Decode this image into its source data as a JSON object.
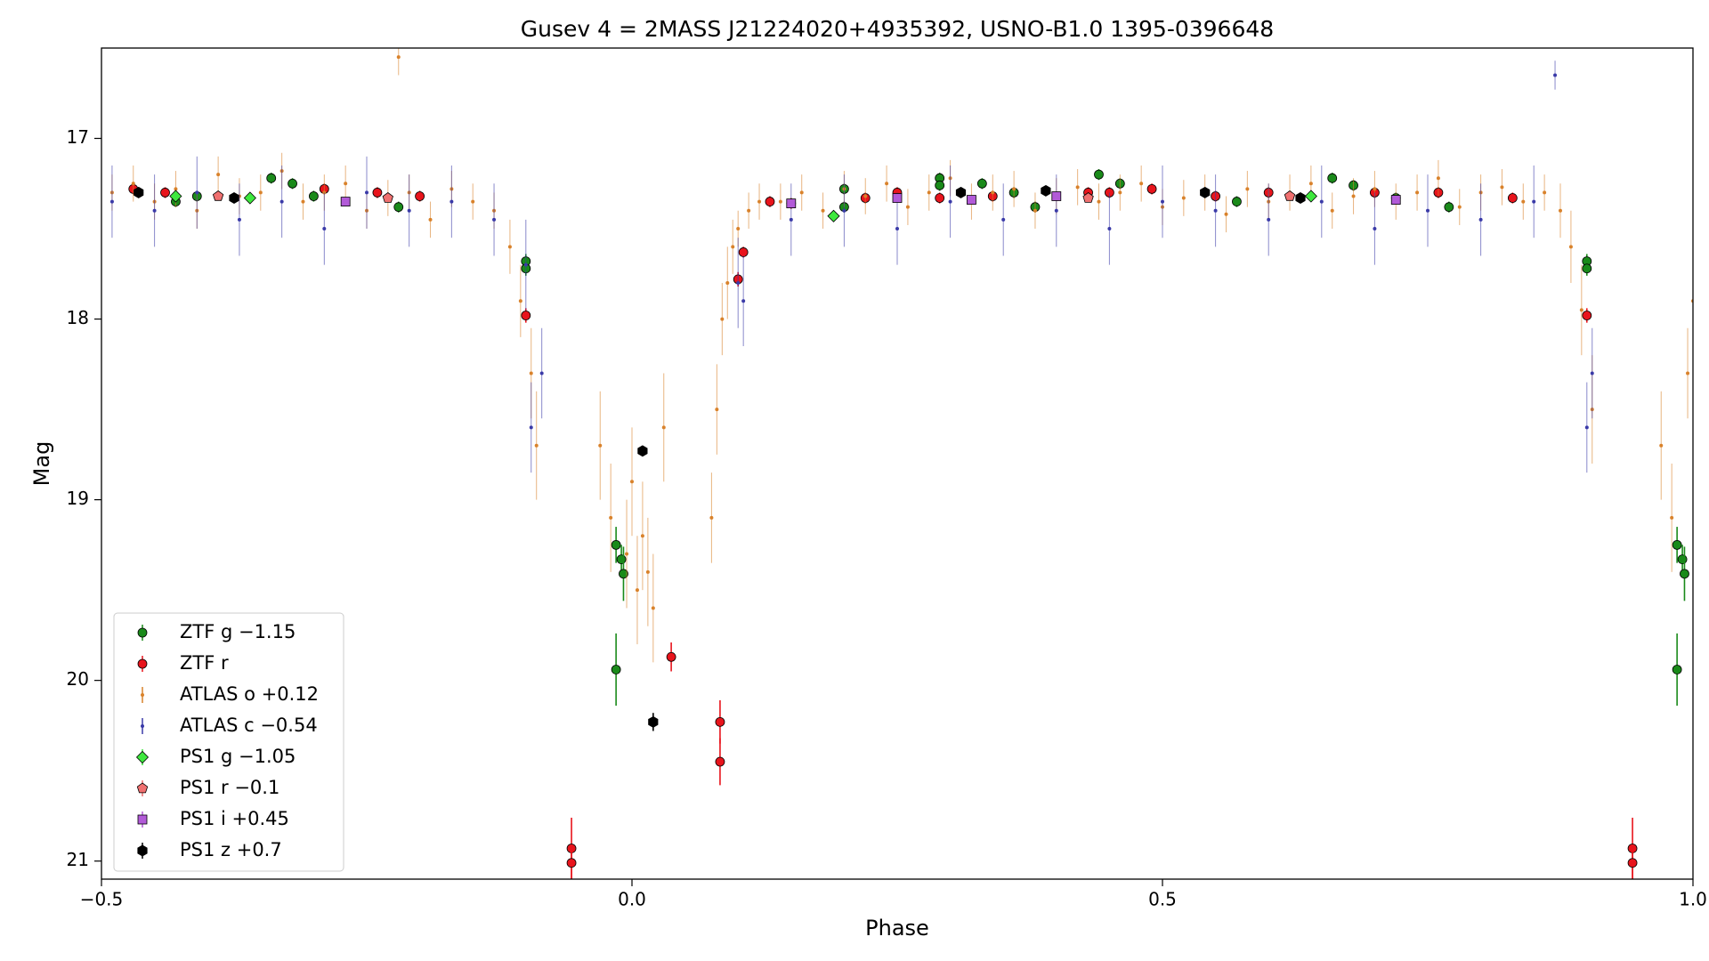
{
  "chart_data": {
    "type": "scatter",
    "title": "Gusev 4 = 2MASS J21224020+4935392, USNO-B1.0 1395-0396648",
    "x_label": "Phase",
    "y_label": "Mag",
    "xlim": [
      -0.5,
      1.0
    ],
    "ylim": [
      21.1,
      16.5
    ],
    "xticks": [
      {
        "value": -0.5,
        "label": "−0.5"
      },
      {
        "value": 0.0,
        "label": "0.0"
      },
      {
        "value": 0.5,
        "label": "0.5"
      },
      {
        "value": 1.0,
        "label": "1.0"
      }
    ],
    "yticks": [
      17,
      18,
      19,
      20,
      21
    ],
    "y_inverted": true,
    "grid": false,
    "legend": "lower left",
    "series": [
      {
        "name": "ZTF g −1.15",
        "color": "#1a8a1a",
        "marker": "circle",
        "x": [
          -0.465,
          -0.43,
          -0.41,
          -0.34,
          -0.32,
          -0.3,
          -0.22,
          -0.1,
          -0.1,
          -0.015,
          -0.01,
          -0.008,
          -0.015,
          0.2,
          0.2,
          0.29,
          0.29,
          0.33,
          0.36,
          0.38,
          0.44,
          0.46,
          0.57,
          0.66,
          0.68,
          0.72,
          0.77,
          0.9,
          0.9,
          0.985,
          0.99,
          0.992,
          0.985
        ],
        "values": [
          17.3,
          17.35,
          17.32,
          17.22,
          17.25,
          17.32,
          17.38,
          17.68,
          17.72,
          19.25,
          19.33,
          19.41,
          19.94,
          17.28,
          17.38,
          17.22,
          17.26,
          17.25,
          17.3,
          17.38,
          17.2,
          17.25,
          17.35,
          17.22,
          17.26,
          17.33,
          17.38,
          17.68,
          17.72,
          19.25,
          19.33,
          19.41,
          19.94
        ],
        "errors": [
          0.03,
          0.03,
          0.03,
          0.03,
          0.03,
          0.03,
          0.03,
          0.04,
          0.04,
          0.1,
          0.08,
          0.15,
          0.2,
          0.03,
          0.03,
          0.03,
          0.03,
          0.03,
          0.03,
          0.03,
          0.03,
          0.03,
          0.03,
          0.03,
          0.03,
          0.03,
          0.03,
          0.04,
          0.04,
          0.1,
          0.08,
          0.15,
          0.2
        ]
      },
      {
        "name": "ZTF r",
        "color": "#e8141c",
        "marker": "circle",
        "x": [
          -0.47,
          -0.44,
          -0.29,
          -0.24,
          -0.2,
          -0.1,
          -0.057,
          -0.057,
          0.037,
          0.083,
          0.083,
          0.1,
          0.105,
          0.13,
          0.15,
          0.22,
          0.25,
          0.29,
          0.34,
          0.43,
          0.45,
          0.49,
          0.55,
          0.6,
          0.7,
          0.76,
          0.83,
          0.9,
          0.943,
          0.943
        ],
        "values": [
          17.28,
          17.3,
          17.28,
          17.3,
          17.32,
          17.98,
          20.93,
          21.01,
          19.87,
          20.23,
          20.45,
          17.78,
          17.63,
          17.35,
          17.36,
          17.33,
          17.3,
          17.33,
          17.32,
          17.3,
          17.3,
          17.28,
          17.32,
          17.3,
          17.3,
          17.3,
          17.33,
          17.98,
          20.93,
          21.01
        ],
        "errors": [
          0.03,
          0.03,
          0.03,
          0.03,
          0.03,
          0.04,
          0.17,
          0.1,
          0.08,
          0.12,
          0.13,
          0.04,
          0.03,
          0.03,
          0.03,
          0.03,
          0.03,
          0.03,
          0.03,
          0.03,
          0.03,
          0.03,
          0.03,
          0.03,
          0.03,
          0.03,
          0.03,
          0.04,
          0.17,
          0.1
        ]
      },
      {
        "name": "ATLAS o +0.12",
        "color": "#d9822b",
        "marker": "dot",
        "x": [
          -0.49,
          -0.47,
          -0.45,
          -0.43,
          -0.41,
          -0.39,
          -0.37,
          -0.35,
          -0.33,
          -0.31,
          -0.29,
          -0.27,
          -0.25,
          -0.23,
          -0.22,
          -0.21,
          -0.19,
          -0.17,
          -0.15,
          -0.13,
          -0.115,
          -0.105,
          -0.095,
          -0.09,
          -0.03,
          -0.02,
          -0.005,
          0.0,
          0.005,
          0.01,
          0.015,
          0.02,
          0.03,
          0.075,
          0.08,
          0.085,
          0.09,
          0.095,
          0.1,
          0.11,
          0.12,
          0.14,
          0.16,
          0.18,
          0.2,
          0.22,
          0.24,
          0.26,
          0.28,
          0.3,
          0.32,
          0.34,
          0.36,
          0.38,
          0.4,
          0.42,
          0.44,
          0.46,
          0.48,
          0.5,
          0.52,
          0.54,
          0.56,
          0.58,
          0.6,
          0.62,
          0.64,
          0.66,
          0.68,
          0.7,
          0.72,
          0.74,
          0.76,
          0.78,
          0.8,
          0.82,
          0.84,
          0.86,
          0.875,
          0.885,
          0.895,
          0.905,
          0.97,
          0.98,
          0.995,
          1.0
        ],
        "values": [
          17.3,
          17.25,
          17.35,
          17.28,
          17.4,
          17.2,
          17.32,
          17.3,
          17.18,
          17.35,
          17.3,
          17.25,
          17.4,
          17.33,
          16.55,
          17.3,
          17.45,
          17.28,
          17.35,
          17.4,
          17.6,
          17.9,
          18.3,
          18.7,
          18.7,
          19.1,
          19.3,
          18.9,
          19.5,
          19.2,
          19.4,
          19.6,
          18.6,
          19.1,
          18.5,
          18.0,
          17.8,
          17.6,
          17.5,
          17.4,
          17.35,
          17.35,
          17.3,
          17.4,
          17.28,
          17.32,
          17.25,
          17.38,
          17.3,
          17.22,
          17.35,
          17.3,
          17.28,
          17.4,
          17.32,
          17.27,
          17.35,
          17.3,
          17.25,
          17.38,
          17.33,
          17.3,
          17.42,
          17.28,
          17.35,
          17.3,
          17.25,
          17.4,
          17.32,
          17.28,
          17.35,
          17.3,
          17.22,
          17.38,
          17.3,
          17.27,
          17.35,
          17.3,
          17.4,
          17.6,
          17.95,
          18.5,
          18.7,
          19.1,
          18.3,
          17.9
        ],
        "errors": [
          0.1,
          0.1,
          0.1,
          0.1,
          0.1,
          0.1,
          0.1,
          0.1,
          0.1,
          0.1,
          0.1,
          0.1,
          0.1,
          0.1,
          0.1,
          0.1,
          0.1,
          0.1,
          0.1,
          0.1,
          0.15,
          0.2,
          0.25,
          0.3,
          0.3,
          0.3,
          0.3,
          0.3,
          0.3,
          0.3,
          0.3,
          0.3,
          0.3,
          0.25,
          0.25,
          0.2,
          0.2,
          0.15,
          0.1,
          0.1,
          0.1,
          0.1,
          0.1,
          0.1,
          0.1,
          0.1,
          0.1,
          0.1,
          0.1,
          0.1,
          0.1,
          0.1,
          0.1,
          0.1,
          0.1,
          0.1,
          0.1,
          0.1,
          0.1,
          0.1,
          0.1,
          0.1,
          0.1,
          0.1,
          0.1,
          0.1,
          0.1,
          0.1,
          0.1,
          0.1,
          0.1,
          0.1,
          0.1,
          0.1,
          0.1,
          0.1,
          0.1,
          0.1,
          0.15,
          0.2,
          0.25,
          0.3,
          0.3,
          0.3,
          0.25,
          0.2
        ]
      },
      {
        "name": "ATLAS c −0.54",
        "color": "#3a3aa8",
        "marker": "dot",
        "x": [
          -0.49,
          -0.45,
          -0.41,
          -0.37,
          -0.33,
          -0.29,
          -0.25,
          -0.21,
          -0.17,
          -0.13,
          -0.1,
          -0.095,
          -0.085,
          0.1,
          0.105,
          0.15,
          0.2,
          0.25,
          0.3,
          0.35,
          0.4,
          0.45,
          0.5,
          0.55,
          0.6,
          0.65,
          0.7,
          0.75,
          0.8,
          0.85,
          0.87,
          0.9,
          0.905
        ],
        "values": [
          17.35,
          17.4,
          17.3,
          17.45,
          17.35,
          17.5,
          17.3,
          17.4,
          17.35,
          17.45,
          17.7,
          18.6,
          18.3,
          17.8,
          17.9,
          17.45,
          17.4,
          17.5,
          17.35,
          17.45,
          17.4,
          17.5,
          17.35,
          17.4,
          17.45,
          17.35,
          17.5,
          17.4,
          17.45,
          17.35,
          16.65,
          18.6,
          18.3
        ],
        "errors": [
          0.2,
          0.2,
          0.2,
          0.2,
          0.2,
          0.2,
          0.2,
          0.2,
          0.2,
          0.2,
          0.25,
          0.25,
          0.25,
          0.25,
          0.25,
          0.2,
          0.2,
          0.2,
          0.2,
          0.2,
          0.2,
          0.2,
          0.2,
          0.2,
          0.2,
          0.2,
          0.2,
          0.2,
          0.2,
          0.2,
          0.08,
          0.25,
          0.25
        ]
      },
      {
        "name": "PS1 g −1.05",
        "color": "#3ee83e",
        "marker": "diamond",
        "x": [
          -0.43,
          -0.36,
          0.19,
          0.64
        ],
        "values": [
          17.32,
          17.33,
          17.43,
          17.32
        ],
        "errors": [
          0.02,
          0.02,
          0.02,
          0.02
        ]
      },
      {
        "name": "PS1 r −0.1",
        "color": "#f07070",
        "marker": "pentagon",
        "x": [
          -0.39,
          -0.23,
          0.43,
          0.62
        ],
        "values": [
          17.32,
          17.33,
          17.33,
          17.32
        ],
        "errors": [
          0.02,
          0.02,
          0.02,
          0.02
        ]
      },
      {
        "name": "PS1 i +0.45",
        "color": "#b25ad8",
        "marker": "square",
        "x": [
          -0.27,
          0.15,
          0.25,
          0.32,
          0.4,
          0.72
        ],
        "values": [
          17.35,
          17.36,
          17.33,
          17.34,
          17.32,
          17.34
        ],
        "errors": [
          0.02,
          0.02,
          0.02,
          0.02,
          0.02,
          0.02
        ]
      },
      {
        "name": "PS1 z +0.7",
        "color": "#000000",
        "marker": "hexagon",
        "x": [
          -0.465,
          -0.375,
          0.01,
          0.02,
          0.31,
          0.39,
          0.54,
          0.63
        ],
        "values": [
          17.3,
          17.33,
          18.73,
          20.23,
          17.3,
          17.29,
          17.3,
          17.33
        ],
        "errors": [
          0.02,
          0.02,
          0.02,
          0.05,
          0.02,
          0.02,
          0.02,
          0.02
        ]
      }
    ]
  }
}
